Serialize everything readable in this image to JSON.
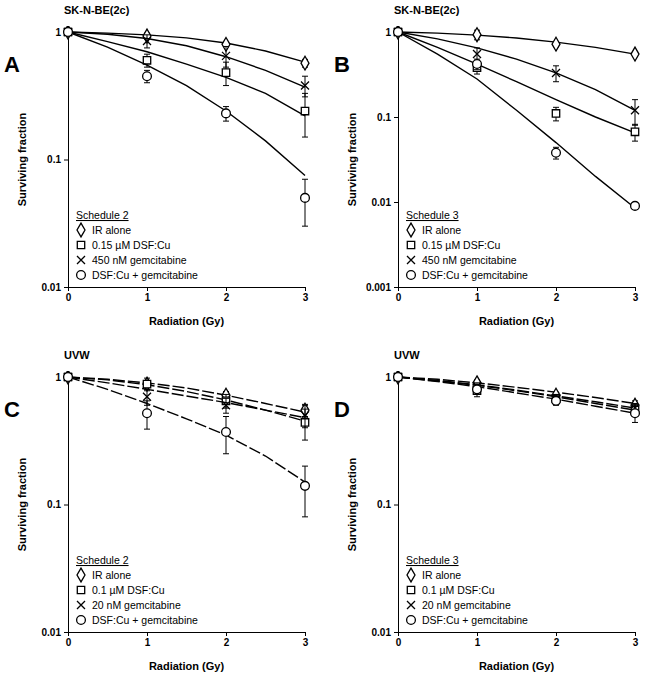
{
  "chart_data": [
    {
      "type": "scatter",
      "title": "SK-N-BE(2c)",
      "subtitle": "Schedule 2",
      "annotations": [
        "A"
      ],
      "x_label": "Radiation (Gy)",
      "y_label": "Surviving fraction",
      "log": "y",
      "grid": false,
      "legend": "bottom-left",
      "line_style": "solid",
      "xlim": [
        0,
        3
      ],
      "xticks": [
        0,
        1,
        2,
        3
      ],
      "ylim": [
        0.01,
        1
      ],
      "yticks": [
        0.01,
        0.1,
        1
      ],
      "x": [
        0,
        1,
        2,
        3
      ],
      "series": [
        {
          "name": "IR alone",
          "marker": "diamond",
          "color": "#000000",
          "values": [
            1,
            0.93,
            0.8,
            0.57
          ],
          "errors": [
            null,
            0.05,
            0.03,
            0.04
          ],
          "fit": {
            "x": [
              0,
              0.5,
              1,
              1.5,
              2,
              2.5,
              3
            ],
            "values": [
              1,
              0.98,
              0.95,
              0.9,
              0.82,
              0.71,
              0.58
            ]
          }
        },
        {
          "name": "0.15 µM DSF:Cu",
          "marker": "square",
          "color": "#000000",
          "values": [
            1,
            0.6,
            0.48,
            0.24
          ],
          "errors": [
            null,
            0.07,
            0.1,
            0.09
          ],
          "fit": {
            "x": [
              0,
              0.5,
              1,
              1.5,
              2,
              2.5,
              3
            ],
            "values": [
              1,
              0.84,
              0.7,
              0.56,
              0.44,
              0.33,
              0.22
            ]
          }
        },
        {
          "name": "450 nM gemcitabine",
          "marker": "cross",
          "color": "#000000",
          "values": [
            1,
            0.85,
            0.65,
            0.38
          ],
          "errors": [
            null,
            0.1,
            0.12,
            0.07
          ],
          "fit": {
            "x": [
              0,
              0.5,
              1,
              1.5,
              2,
              2.5,
              3
            ],
            "values": [
              1,
              0.96,
              0.89,
              0.78,
              0.64,
              0.5,
              0.37
            ]
          }
        },
        {
          "name": "DSF:Cu + gemcitabine",
          "marker": "circle",
          "color": "#000000",
          "values": [
            1,
            0.45,
            0.23,
            0.05
          ],
          "errors": [
            null,
            0.05,
            0.03,
            0.02
          ],
          "fit": {
            "x": [
              0,
              0.5,
              1,
              1.5,
              2,
              2.5,
              3
            ],
            "values": [
              1,
              0.76,
              0.55,
              0.38,
              0.24,
              0.14,
              0.075
            ]
          }
        }
      ]
    },
    {
      "type": "scatter",
      "title": "SK-N-BE(2c)",
      "subtitle": "Schedule 3",
      "annotations": [
        "B"
      ],
      "x_label": "Radiation (Gy)",
      "y_label": "Surviving fraction",
      "log": "y",
      "grid": false,
      "legend": "bottom-left",
      "line_style": "solid",
      "xlim": [
        0,
        3
      ],
      "xticks": [
        0,
        1,
        2,
        3
      ],
      "ylim": [
        0.001,
        1
      ],
      "yticks": [
        0.001,
        0.01,
        0.1,
        1
      ],
      "x": [
        0,
        1,
        2,
        3
      ],
      "series": [
        {
          "name": "IR alone",
          "marker": "diamond",
          "color": "#000000",
          "values": [
            1,
            0.93,
            0.72,
            0.55
          ],
          "errors": [
            null,
            0.12,
            0.05,
            0.03
          ],
          "fit": {
            "x": [
              0,
              0.5,
              1,
              1.5,
              2,
              2.5,
              3
            ],
            "values": [
              1,
              0.97,
              0.92,
              0.85,
              0.76,
              0.66,
              0.55
            ]
          }
        },
        {
          "name": "0.15 µM DSF:Cu",
          "marker": "square",
          "color": "#000000",
          "values": [
            1,
            0.38,
            0.11,
            0.067
          ],
          "errors": [
            null,
            0.06,
            0.02,
            0.015
          ],
          "fit": {
            "x": [
              0,
              0.5,
              1,
              1.5,
              2,
              2.5,
              3
            ],
            "values": [
              1,
              0.66,
              0.42,
              0.26,
              0.16,
              0.1,
              0.065
            ]
          }
        },
        {
          "name": "450 nM gemcitabine",
          "marker": "cross",
          "color": "#000000",
          "values": [
            1,
            0.55,
            0.33,
            0.12
          ],
          "errors": [
            null,
            0.1,
            0.07,
            0.04
          ],
          "fit": {
            "x": [
              0,
              0.5,
              1,
              1.5,
              2,
              2.5,
              3
            ],
            "values": [
              1,
              0.83,
              0.65,
              0.48,
              0.33,
              0.21,
              0.12
            ]
          }
        },
        {
          "name": "DSF:Cu + gemcitabine",
          "marker": "circle",
          "color": "#000000",
          "values": [
            1,
            0.42,
            0.038,
            0.009
          ],
          "errors": [
            null,
            0.06,
            0.006,
            0.0008
          ],
          "fit": {
            "x": [
              0,
              0.5,
              1,
              1.5,
              2,
              2.5,
              3
            ],
            "values": [
              1,
              0.55,
              0.28,
              0.12,
              0.05,
              0.02,
              0.0085
            ]
          }
        }
      ]
    },
    {
      "type": "scatter",
      "title": "UVW",
      "subtitle": "Schedule 2",
      "annotations": [
        "C"
      ],
      "x_label": "Radiation (Gy)",
      "y_label": "Surviving fraction",
      "log": "y",
      "grid": false,
      "legend": "bottom-left",
      "line_style": "dashed",
      "xlim": [
        0,
        3
      ],
      "xticks": [
        0,
        1,
        2,
        3
      ],
      "ylim": [
        0.01,
        1
      ],
      "yticks": [
        0.01,
        0.1,
        1
      ],
      "x": [
        0,
        1,
        2,
        3
      ],
      "series": [
        {
          "name": "IR alone",
          "marker": "diamond",
          "color": "#000000",
          "values": [
            1,
            0.88,
            0.72,
            0.55
          ],
          "errors": [
            null,
            0.05,
            0.05,
            0.06
          ],
          "fit": {
            "x": [
              0,
              0.5,
              1,
              1.5,
              2,
              2.5,
              3
            ],
            "values": [
              1,
              0.96,
              0.9,
              0.82,
              0.72,
              0.62,
              0.53
            ]
          }
        },
        {
          "name": "0.1 µM DSF:Cu",
          "marker": "square",
          "color": "#000000",
          "values": [
            1,
            0.88,
            0.65,
            0.44
          ],
          "errors": [
            null,
            0.1,
            0.08,
            0.12
          ],
          "fit": {
            "x": [
              0,
              0.5,
              1,
              1.5,
              2,
              2.5,
              3
            ],
            "values": [
              1,
              0.95,
              0.87,
              0.77,
              0.66,
              0.55,
              0.45
            ]
          }
        },
        {
          "name": "20 nM gemcitabine",
          "marker": "cross",
          "color": "#000000",
          "values": [
            1,
            0.7,
            0.6,
            0.5
          ],
          "errors": [
            null,
            0.1,
            0.08,
            0.1
          ],
          "fit": {
            "x": [
              0,
              0.5,
              1,
              1.5,
              2,
              2.5,
              3
            ],
            "values": [
              1,
              0.9,
              0.8,
              0.71,
              0.63,
              0.55,
              0.48
            ]
          }
        },
        {
          "name": "DSF:Cu + gemcitabine",
          "marker": "circle",
          "color": "#000000",
          "values": [
            1,
            0.52,
            0.37,
            0.14
          ],
          "errors": [
            null,
            0.13,
            0.12,
            0.06
          ],
          "fit": {
            "x": [
              0,
              0.5,
              1,
              1.5,
              2,
              2.5,
              3
            ],
            "values": [
              1,
              0.8,
              0.62,
              0.47,
              0.35,
              0.24,
              0.15
            ]
          }
        }
      ]
    },
    {
      "type": "scatter",
      "title": "UVW",
      "subtitle": "Schedule 3",
      "annotations": [
        "D"
      ],
      "x_label": "Radiation (Gy)",
      "y_label": "Surviving fraction",
      "log": "y",
      "grid": false,
      "legend": "bottom-left",
      "line_style": "dashed",
      "xlim": [
        0,
        3
      ],
      "xticks": [
        0,
        1,
        2,
        3
      ],
      "ylim": [
        0.01,
        1
      ],
      "yticks": [
        0.01,
        0.1,
        1
      ],
      "x": [
        0,
        1,
        2,
        3
      ],
      "series": [
        {
          "name": "IR alone",
          "marker": "diamond",
          "color": "#000000",
          "values": [
            1,
            0.9,
            0.72,
            0.6
          ],
          "errors": [
            null,
            0.05,
            0.04,
            0.05
          ],
          "fit": {
            "x": [
              0,
              0.5,
              1,
              1.5,
              2,
              2.5,
              3
            ],
            "values": [
              1,
              0.96,
              0.9,
              0.83,
              0.76,
              0.69,
              0.62
            ]
          }
        },
        {
          "name": "0.1 µM DSF:Cu",
          "marker": "square",
          "color": "#000000",
          "values": [
            1,
            0.78,
            0.68,
            0.55
          ],
          "errors": [
            null,
            0.08,
            0.05,
            0.06
          ],
          "fit": {
            "x": [
              0,
              0.5,
              1,
              1.5,
              2,
              2.5,
              3
            ],
            "values": [
              1,
              0.93,
              0.86,
              0.78,
              0.7,
              0.62,
              0.55
            ]
          }
        },
        {
          "name": "20 nM gemcitabine",
          "marker": "cross",
          "color": "#000000",
          "values": [
            1,
            0.85,
            0.67,
            0.57
          ],
          "errors": [
            null,
            0.05,
            0.05,
            0.05
          ],
          "fit": {
            "x": [
              0,
              0.5,
              1,
              1.5,
              2,
              2.5,
              3
            ],
            "values": [
              1,
              0.94,
              0.87,
              0.79,
              0.71,
              0.64,
              0.57
            ]
          }
        },
        {
          "name": "DSF:Cu + gemcitabine",
          "marker": "circle",
          "color": "#000000",
          "values": [
            1,
            0.8,
            0.65,
            0.52
          ],
          "errors": [
            null,
            0.04,
            0.05,
            0.08
          ],
          "fit": {
            "x": [
              0,
              0.5,
              1,
              1.5,
              2,
              2.5,
              3
            ],
            "values": [
              1,
              0.92,
              0.84,
              0.75,
              0.67,
              0.59,
              0.52
            ]
          }
        }
      ]
    }
  ]
}
